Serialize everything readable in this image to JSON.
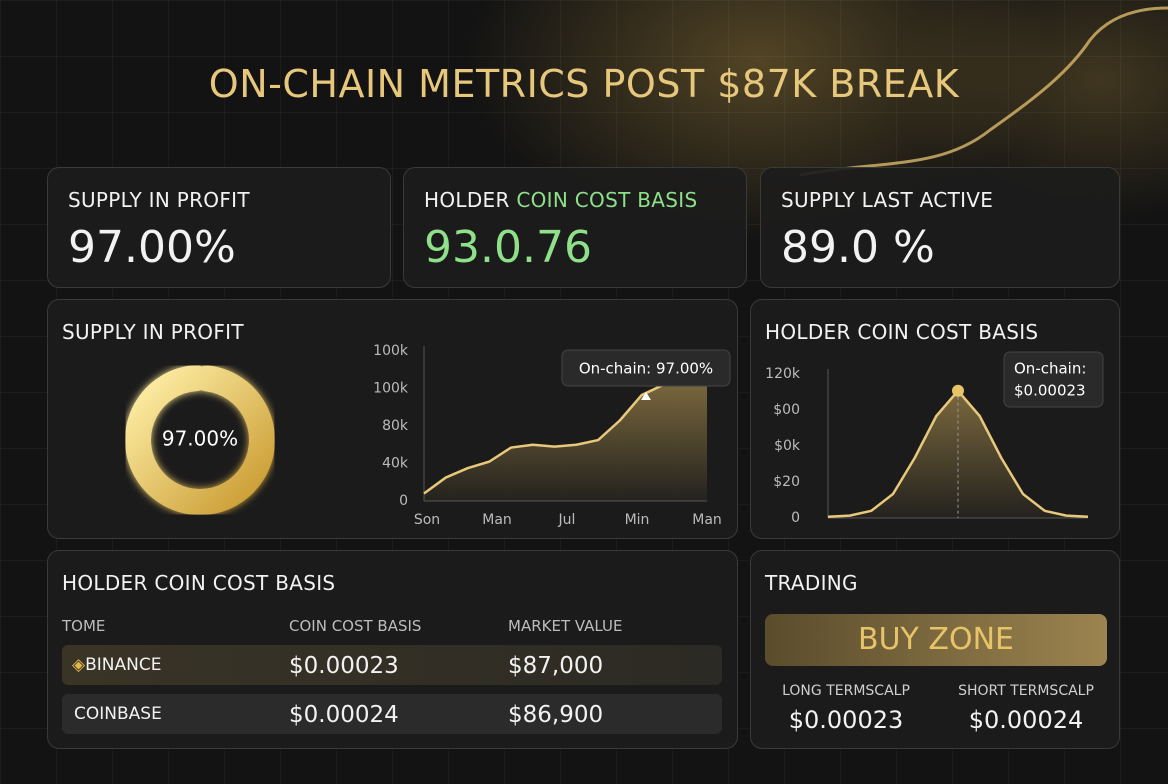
{
  "title": "ON-CHAIN METRICS POST $87K BREAK",
  "cards": [
    {
      "label": "SUPPLY IN PROFIT",
      "value": "97.00%"
    },
    {
      "label_parts": [
        "HOLDER",
        "COIN COST BASIS"
      ],
      "value": "93.0.76"
    },
    {
      "label": "SUPPLY LAST ACTIVE",
      "value": "89.0 %"
    }
  ],
  "profit_panel": {
    "title": "SUPPLY IN PROFIT",
    "donut": {
      "type": "pie",
      "value": 97,
      "value_label": "97.00%"
    },
    "line": {
      "type": "line",
      "categories": [
        "Son",
        "Man",
        "Jul",
        "Min",
        "Man"
      ],
      "yticks": [
        "0",
        "40k",
        "80k",
        "100k",
        "100k"
      ],
      "ylim": [
        0,
        160000
      ],
      "values": [
        8000,
        25000,
        35000,
        42000,
        57000,
        60000,
        58000,
        60000,
        65000,
        86000,
        113000,
        124000,
        124000,
        129000
      ],
      "tooltip": "On-chain: 97.00%",
      "color": "#e8c87a"
    }
  },
  "basis_panel": {
    "title": "HOLDER COIN COST BASIS",
    "chart": {
      "type": "area",
      "yticks": [
        "0",
        "$20",
        "$0k",
        "$00",
        "120k"
      ],
      "ylim": [
        0,
        120000
      ],
      "values": [
        1000,
        2000,
        6000,
        20000,
        50000,
        85000,
        106000,
        85000,
        50000,
        20000,
        6000,
        2000,
        1000
      ],
      "tooltip": [
        "On-chain:",
        "$0.00023"
      ],
      "color": "#e8c87a"
    }
  },
  "table": {
    "title": "HOLDER COIN COST BASIS",
    "headers": [
      "TOME",
      "COIN COST BASIS",
      "MARKET VALUE"
    ],
    "rows": [
      [
        "BINANCE",
        "$0.00023",
        "$87,000"
      ],
      [
        "COINBASE",
        "$0.00024",
        "$86,900"
      ]
    ]
  },
  "trading": {
    "title": "TRADING",
    "button": "BUY ZONE",
    "items": [
      {
        "label": "LONG TERMSCALP",
        "value": "$0.00023"
      },
      {
        "label": "SHORT TERMSCALP",
        "value": "$0.00024"
      }
    ]
  }
}
